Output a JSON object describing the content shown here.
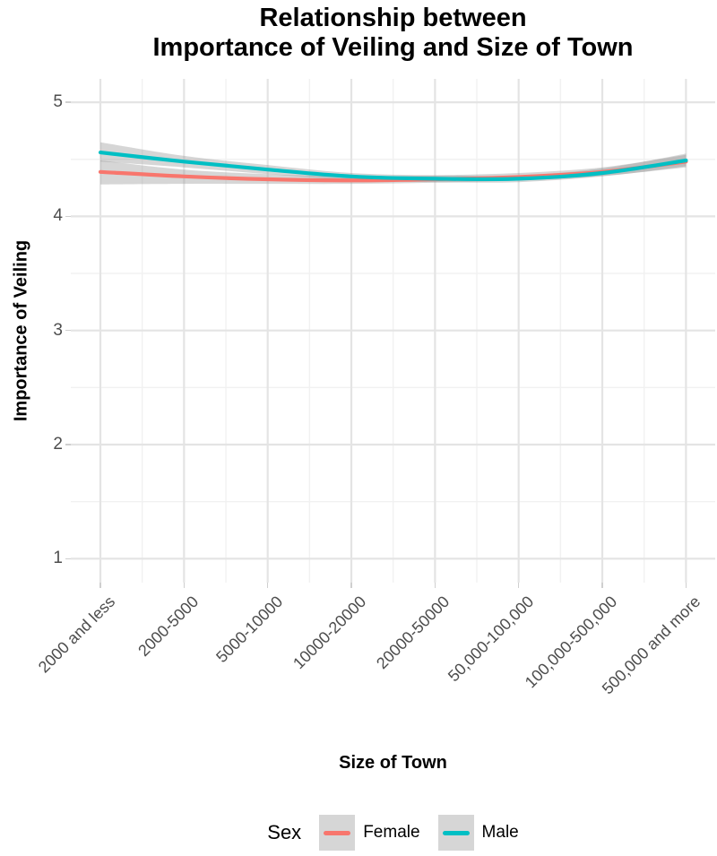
{
  "title": {
    "line1": "Relationship between",
    "line2": "Importance of Veiling and Size of Town"
  },
  "axes": {
    "y_label": "Importance of Veiling",
    "x_label": "Size of Town",
    "y_ticks": [
      1,
      2,
      3,
      4,
      5
    ],
    "y_minor_ticks": [
      1.5,
      2.5,
      3.5,
      4.5
    ]
  },
  "legend": {
    "title": "Sex",
    "items": [
      {
        "label": "Female",
        "color": "#F8766D"
      },
      {
        "label": "Male",
        "color": "#00BFC4"
      }
    ]
  },
  "colors": {
    "female": "#F8766D",
    "male": "#00BFC4",
    "ci_band": "rgba(153,153,153,0.40)",
    "grid_major": "#e4e4e4",
    "grid_minor": "#f1f1f1",
    "tick_text": "#4d4d4d"
  },
  "chart_data": {
    "type": "line",
    "title": "Relationship between Importance of Veiling and Size of Town",
    "xlabel": "Size of Town",
    "ylabel": "Importance of Veiling",
    "ylim": [
      1,
      5
    ],
    "y_ticks": [
      1,
      2,
      3,
      4,
      5
    ],
    "grid": "on",
    "legend_title": "Sex",
    "legend_position": "bottom",
    "smoothed": true,
    "categories": [
      "2000 and less",
      "2000-5000",
      "5000-10000",
      "10000-20000",
      "20000-50000",
      "50,000-100,000",
      "100,000-500,000",
      "500,000 and more"
    ],
    "series": [
      {
        "name": "Female",
        "color": "#F8766D",
        "values": [
          4.39,
          4.35,
          4.325,
          4.315,
          4.325,
          4.345,
          4.39,
          4.48
        ],
        "ci_upper": [
          4.49,
          4.41,
          4.37,
          4.35,
          4.36,
          4.38,
          4.43,
          4.54
        ],
        "ci_lower": [
          4.28,
          4.285,
          4.285,
          4.285,
          4.295,
          4.315,
          4.355,
          4.43
        ]
      },
      {
        "name": "Male",
        "color": "#00BFC4",
        "values": [
          4.56,
          4.48,
          4.41,
          4.35,
          4.33,
          4.33,
          4.38,
          4.49
        ],
        "ci_upper": [
          4.65,
          4.53,
          4.45,
          4.38,
          4.36,
          4.36,
          4.42,
          4.55
        ],
        "ci_lower": [
          4.48,
          4.43,
          4.37,
          4.32,
          4.3,
          4.3,
          4.35,
          4.44
        ]
      }
    ]
  }
}
